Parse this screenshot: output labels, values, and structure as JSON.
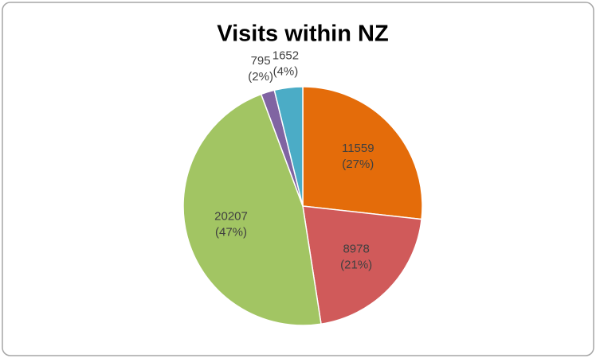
{
  "chart_data": {
    "type": "pie",
    "title": "Visits within NZ",
    "categories": [
      null,
      null,
      null,
      null,
      null
    ],
    "values": [
      11559,
      8978,
      20207,
      795,
      1652
    ],
    "percents": [
      27,
      21,
      47,
      2,
      4
    ],
    "percent_labels": [
      "(27%)",
      "(21%)",
      "(47%)",
      "(2%)",
      "(4%)"
    ],
    "colors": [
      "#e46c0a",
      "#d05a5a",
      "#a2c563",
      "#8064a2",
      "#4bacc6"
    ]
  }
}
